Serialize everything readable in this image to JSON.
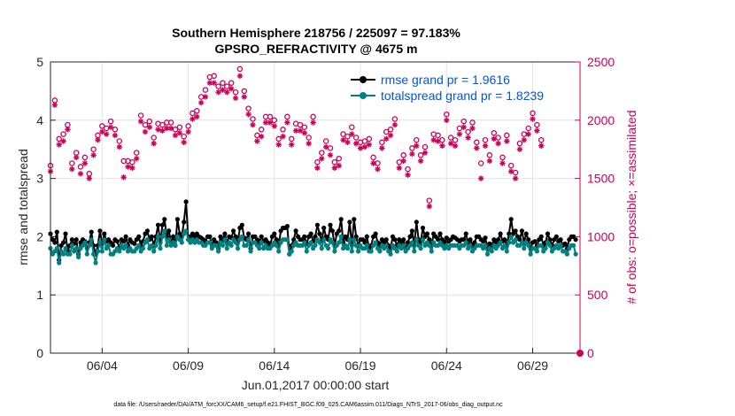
{
  "chart_data": {
    "type": "line",
    "title": "Southern Hemisphere 218756 / 225097 = 97.183%",
    "subtitle": "GPSRO_REFRACTIVITY @ 4675 m",
    "xlabel": "Jun.01,2017 00:00:00 start",
    "ylabel": "rmse and totalspread",
    "y2label": "# of obs: o=possible; ×=assimilated",
    "footnote": "data file: /Users/raeder/DAI/ATM_forcXX/CAM6_setup/f.e21.FHIST_BGC.f09_025.CAM6assim.011/Diags_NTrS_2017-06/obs_diag_output.nc",
    "xlim": [
      1,
      31.75
    ],
    "ylim": [
      0,
      5
    ],
    "y2lim": [
      0,
      2500
    ],
    "x_ticks": [
      4,
      9,
      14,
      19,
      24,
      29
    ],
    "x_tick_labels": [
      "06/04",
      "06/09",
      "06/14",
      "06/19",
      "06/24",
      "06/29"
    ],
    "y_ticks": [
      0,
      1,
      2,
      3,
      4,
      5
    ],
    "y2_ticks": [
      0,
      500,
      1000,
      1500,
      2000,
      2500
    ],
    "grid": true,
    "legend_position": "top-right",
    "colors": {
      "rmse": "#000000",
      "totalspread": "#008080",
      "obs": "#cc0055"
    },
    "series": [
      {
        "name": "rmse grand pr = 1.9616",
        "axis": "left",
        "marker": "filled-circle",
        "values": [
          2.05,
          1.95,
          1.9,
          2.08,
          1.6,
          1.85,
          1.9,
          2.05,
          1.75,
          1.85,
          1.95,
          1.88,
          1.95,
          1.7,
          1.9,
          1.95,
          1.92,
          1.8,
          1.9,
          2.08,
          1.85,
          1.7,
          1.85,
          2.1,
          1.88,
          2.05,
          1.92,
          1.95,
          1.9,
          1.85,
          1.95,
          1.92,
          1.8,
          1.95,
          1.92,
          2.0,
          1.85,
          1.95,
          1.9,
          1.88,
          1.95,
          2.0,
          1.85,
          1.92,
          2.05,
          2.1,
          1.95,
          2.0,
          1.85,
          2.0,
          2.2,
          1.9,
          2.2,
          2.3,
          2.0,
          2.1,
          1.9,
          2.0,
          1.85,
          2.3,
          2.05,
          2.0,
          2.25,
          2.6,
          1.95,
          2.0,
          2.05,
          2.0,
          2.05,
          2.0,
          1.98,
          1.95,
          1.92,
          2.0,
          2.0,
          1.85,
          1.95,
          1.9,
          1.8,
          2.0,
          1.95,
          2.05,
          1.9,
          2.0,
          1.98,
          2.1,
          2.0,
          1.9,
          2.15,
          2.2,
          1.98,
          1.95,
          2.05,
          1.8,
          2.0,
          2.0,
          1.95,
          1.9,
          2.0,
          1.92,
          1.95,
          1.9,
          1.85,
          2.0,
          2.05,
          1.95,
          1.85,
          2.1,
          2.15,
          2.15,
          2.18,
          1.7,
          1.85,
          1.95,
          2.1,
          2.0,
          1.95,
          1.95,
          2.0,
          1.88,
          2.0,
          2.05,
          1.92,
          2.0,
          2.2,
          2.05,
          1.92,
          2.15,
          2.0,
          1.95,
          2.2,
          2.1,
          1.85,
          2.05,
          2.1,
          2.3,
          1.9,
          2.0,
          1.95,
          2.25,
          1.85,
          2.3,
          2.0,
          1.85,
          1.95,
          1.95,
          1.9,
          2.0,
          1.8,
          1.85,
          2.0,
          2.05,
          1.9,
          1.85,
          1.95,
          1.9,
          1.95,
          1.85,
          1.8,
          2.0,
          1.95,
          1.85,
          1.95,
          1.9,
          1.95,
          1.8,
          1.9,
          2.0,
          2.1,
          1.85,
          2.25,
          1.95,
          1.9,
          2.15,
          2.0,
          2.05,
          1.95,
          1.85,
          2.05,
          2.0,
          1.95,
          2.05,
          1.95,
          1.9,
          1.98,
          1.92,
          1.95,
          2.0,
          1.98,
          1.95,
          1.92,
          1.95,
          1.95,
          2.05,
          1.88,
          1.95,
          1.85,
          1.9,
          2.0,
          2.0,
          1.95,
          1.92,
          1.98,
          1.8,
          1.88,
          1.85,
          1.95,
          1.9,
          1.95,
          2.05,
          1.92,
          1.95,
          1.85,
          2.05,
          2.3,
          2.05,
          2.1,
          2.0,
          1.95,
          2.1,
          1.9,
          2.05,
          1.95,
          1.8,
          1.9,
          1.92,
          1.85,
          1.95,
          2.0,
          1.85,
          1.9,
          2.05,
          1.95,
          1.85,
          1.95,
          2.0,
          1.92,
          1.95,
          1.85,
          1.88,
          1.8,
          1.95,
          2.0,
          2.0,
          1.95
        ]
      },
      {
        "name": "totalspread grand pr = 1.8239",
        "axis": "left",
        "marker": "filled-circle",
        "values": [
          1.8,
          1.7,
          1.75,
          1.8,
          1.55,
          1.75,
          1.7,
          1.8,
          1.7,
          1.7,
          1.85,
          1.75,
          1.8,
          1.65,
          1.8,
          1.85,
          1.9,
          1.7,
          1.85,
          1.95,
          1.7,
          1.55,
          1.75,
          1.9,
          1.75,
          1.95,
          1.8,
          1.85,
          1.7,
          1.7,
          1.75,
          1.8,
          1.75,
          1.85,
          1.8,
          1.85,
          1.75,
          1.8,
          1.75,
          1.75,
          1.8,
          1.85,
          1.75,
          1.8,
          1.9,
          1.95,
          1.8,
          1.85,
          1.75,
          1.85,
          2.0,
          1.8,
          2.0,
          2.1,
          1.85,
          1.95,
          1.85,
          1.9,
          1.85,
          2.0,
          1.95,
          1.9,
          2.05,
          2.1,
          1.95,
          1.9,
          1.95,
          1.9,
          1.95,
          1.9,
          1.9,
          1.85,
          1.85,
          1.9,
          1.9,
          1.8,
          1.85,
          1.85,
          1.75,
          1.9,
          1.85,
          1.95,
          1.8,
          1.9,
          1.85,
          1.95,
          1.9,
          1.8,
          1.95,
          2.0,
          1.85,
          1.85,
          1.95,
          1.75,
          1.9,
          1.9,
          1.85,
          1.8,
          1.9,
          1.8,
          1.85,
          1.8,
          1.8,
          1.85,
          1.9,
          1.85,
          1.75,
          1.9,
          1.95,
          1.95,
          1.95,
          1.7,
          1.75,
          1.85,
          1.9,
          1.85,
          1.85,
          1.85,
          1.9,
          1.75,
          1.85,
          1.9,
          1.8,
          1.85,
          1.95,
          1.9,
          1.8,
          1.95,
          1.85,
          1.8,
          1.95,
          1.9,
          1.75,
          1.85,
          1.9,
          2.0,
          1.8,
          1.85,
          1.8,
          1.95,
          1.75,
          1.95,
          1.85,
          1.75,
          1.85,
          1.8,
          1.8,
          1.85,
          1.75,
          1.75,
          1.85,
          1.9,
          1.8,
          1.75,
          1.85,
          1.8,
          1.85,
          1.75,
          1.7,
          1.85,
          1.8,
          1.75,
          1.85,
          1.8,
          1.85,
          1.75,
          1.8,
          1.85,
          1.9,
          1.75,
          1.95,
          1.85,
          1.8,
          1.95,
          1.85,
          1.9,
          1.85,
          1.75,
          1.9,
          1.85,
          1.85,
          1.9,
          1.85,
          1.8,
          1.85,
          1.8,
          1.85,
          1.85,
          1.85,
          1.85,
          1.8,
          1.85,
          1.85,
          1.9,
          1.8,
          1.85,
          1.75,
          1.8,
          1.85,
          1.85,
          1.85,
          1.8,
          1.85,
          1.7,
          1.8,
          1.75,
          1.85,
          1.8,
          1.85,
          1.9,
          1.8,
          1.85,
          1.75,
          1.9,
          2.0,
          1.9,
          1.95,
          1.85,
          1.85,
          1.9,
          1.8,
          1.9,
          1.85,
          1.7,
          1.8,
          1.8,
          1.75,
          1.85,
          1.85,
          1.75,
          1.8,
          1.9,
          1.85,
          1.75,
          1.8,
          1.85,
          1.8,
          1.85,
          1.75,
          1.75,
          1.7,
          1.8,
          1.85,
          1.85,
          1.7
        ]
      },
      {
        "name": "possible",
        "axis": "right",
        "marker": "open-circle",
        "legend": false,
        "values": [
          1610,
          2170,
          1840,
          1880,
          1960,
          1630,
          1720,
          1600,
          1680,
          1540,
          1750,
          1870,
          1950,
          1930,
          1990,
          1920,
          1820,
          1650,
          1650,
          1640,
          1720,
          2040,
          1960,
          1990,
          1850,
          1970,
          1960,
          1980,
          1980,
          1920,
          1940,
          1860,
          1950,
          2060,
          2080,
          2200,
          2260,
          2370,
          2380,
          2290,
          2320,
          2290,
          2320,
          2240,
          2440,
          2250,
          2100,
          2010,
          1870,
          1920,
          2030,
          2030,
          2000,
          1840,
          1920,
          2030,
          1840,
          1970,
          1960,
          1940,
          1850,
          2030,
          1640,
          1720,
          1820,
          1760,
          1640,
          1670,
          1880,
          1860,
          1940,
          1850,
          1810,
          1820,
          1840,
          1680,
          1630,
          1810,
          1900,
          1920,
          2010,
          1640,
          1700,
          1580,
          1760,
          1830,
          1700,
          1770,
          1310,
          1880,
          1870,
          1830,
          2050,
          1850,
          1830,
          1930,
          1990,
          1900,
          1980,
          1810,
          1630,
          1830,
          1700,
          1890,
          1850,
          1680,
          1870,
          1610,
          1550,
          1800,
          1880,
          1930,
          2060,
          1960,
          1830
        ]
      },
      {
        "name": "assimilated",
        "axis": "right",
        "marker": "asterisk",
        "legend": false,
        "values": [
          1560,
          2130,
          1790,
          1820,
          1920,
          1580,
          1680,
          1540,
          1630,
          1500,
          1700,
          1830,
          1900,
          1880,
          1940,
          1870,
          1770,
          1510,
          1600,
          1590,
          1670,
          1990,
          1900,
          1940,
          1800,
          1920,
          1910,
          1930,
          1930,
          1870,
          1890,
          1810,
          1900,
          2010,
          2030,
          2150,
          2200,
          2320,
          2320,
          2240,
          2260,
          2240,
          2270,
          2190,
          2380,
          2200,
          2050,
          1960,
          1820,
          1860,
          1980,
          1980,
          1950,
          1790,
          1860,
          1980,
          1790,
          1910,
          1910,
          1890,
          1800,
          1980,
          1590,
          1670,
          1770,
          1700,
          1590,
          1610,
          1830,
          1810,
          1880,
          1800,
          1760,
          1770,
          1790,
          1630,
          1580,
          1760,
          1840,
          1870,
          1960,
          1590,
          1650,
          1530,
          1710,
          1780,
          1650,
          1720,
          1260,
          1830,
          1820,
          1780,
          2000,
          1800,
          1780,
          1880,
          1940,
          1850,
          1930,
          1760,
          1500,
          1780,
          1650,
          1840,
          1800,
          1630,
          1820,
          1560,
          1500,
          1750,
          1830,
          1880,
          2010,
          1910,
          1780
        ]
      }
    ],
    "obs_possible_final": 0,
    "obs_assimilated_final": 0
  }
}
